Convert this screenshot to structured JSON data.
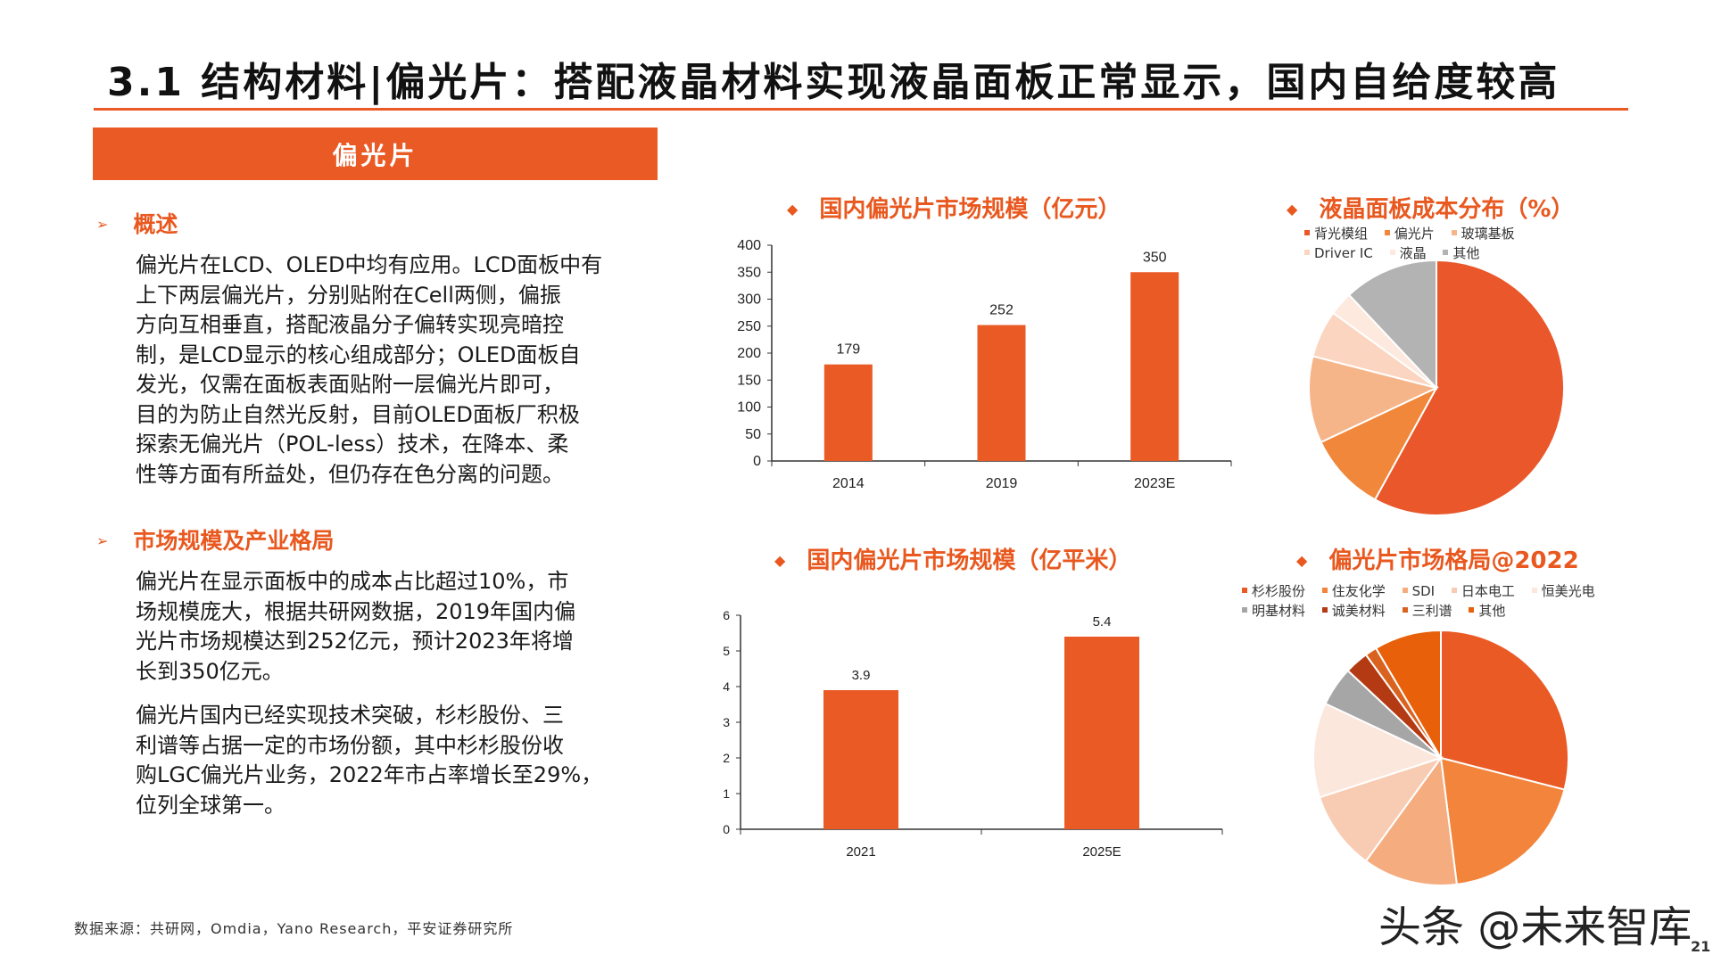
{
  "header": {
    "title": "3.1 结构材料|偏光片：搭配液晶材料实现液晶面板正常显示，国内自给度较高",
    "section_banner": "偏光片"
  },
  "left": {
    "overview": {
      "heading": "概述",
      "lines": [
        "偏光片在LCD、OLED中均有应用。LCD面板中有",
        "上下两层偏光片，分别贴附在Cell两侧，偏振",
        "方向互相垂直，搭配液晶分子偏转实现亮暗控",
        "制，是LCD显示的核心组成部分；OLED面板自",
        "发光，仅需在面板表面贴附一层偏光片即可，",
        "目的为防止自然光反射，目前OLED面板厂积极",
        "探索无偏光片（POL-less）技术，在降本、柔",
        "性等方面有所益处，但仍存在色分离的问题。"
      ]
    },
    "market": {
      "heading": "市场规模及产业格局",
      "para1_lines": [
        "偏光片在显示面板中的成本占比超过10%，市",
        "场规模庞大，根据共研网数据，2019年国内偏",
        "光片市场规模达到252亿元，预计2023年将增",
        "长到350亿元。"
      ],
      "para2_lines": [
        "偏光片国内已经实现技术突破，杉杉股份、三",
        "利谱等占据一定的市场份额，其中杉杉股份收",
        "购LGC偏光片业务，2022年市占率增长至29%，",
        "位列全球第一。"
      ]
    }
  },
  "footer": {
    "source": "数据来源：共研网，Omdia，Yano Research，平安证券研究所",
    "watermark": "头条 @未来智库",
    "page_number": "21"
  },
  "chart_data": [
    {
      "id": "market-size-yuan",
      "type": "bar",
      "title": "国内偏光片市场规模（亿元）",
      "categories": [
        "2014",
        "2019",
        "2023E"
      ],
      "values": [
        179,
        252,
        350
      ],
      "ylim": [
        0,
        400
      ],
      "yticks": [
        0,
        50,
        100,
        150,
        200,
        250,
        300,
        350,
        400
      ],
      "color": "#ea5a25"
    },
    {
      "id": "cost-distribution",
      "type": "pie",
      "title": "液晶面板成本分布（%）",
      "labels": [
        "背光模组",
        "偏光片",
        "玻璃基板",
        "Driver IC",
        "液晶",
        "其他"
      ],
      "values": [
        58,
        10,
        11,
        6,
        3,
        12
      ],
      "colors": [
        "#e9572a",
        "#f0873a",
        "#f6b489",
        "#fbd5c0",
        "#fde9dd",
        "#b3b3b3"
      ]
    },
    {
      "id": "market-size-area",
      "type": "bar",
      "title": "国内偏光片市场规模（亿平米）",
      "categories": [
        "2021",
        "2025E"
      ],
      "values": [
        3.9,
        5.4
      ],
      "ylim": [
        0,
        6
      ],
      "yticks": [
        0,
        1,
        2,
        3,
        4,
        5,
        6
      ],
      "color": "#ea5a25"
    },
    {
      "id": "market-share-2022",
      "type": "pie",
      "title": "偏光片市场格局@2022",
      "labels": [
        "杉杉股份",
        "住友化学",
        "SDI",
        "日本电工",
        "恒美光电",
        "明基材料",
        "诚美材料",
        "三利谱",
        "其他"
      ],
      "values": [
        29,
        19,
        12,
        10,
        12,
        5,
        3,
        1.5,
        8.5
      ],
      "colors": [
        "#ea5a25",
        "#f2843c",
        "#f5ad80",
        "#f8ccb2",
        "#fce7dc",
        "#a6a6a6",
        "#b33a12",
        "#d9621e",
        "#e8600a"
      ]
    }
  ]
}
